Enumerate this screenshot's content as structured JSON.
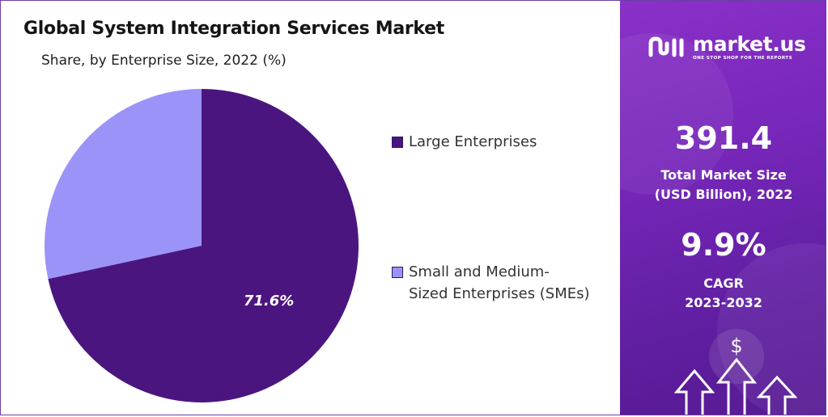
{
  "chart_data": {
    "type": "pie",
    "title": "Global System Integration Services Market",
    "subtitle": "Share, by Enterprise Size, 2022 (%)",
    "slices": [
      {
        "label": "Large Enterprises",
        "value": 71.6,
        "color": "#4b1580",
        "data_label": "71.6%"
      },
      {
        "label": "Small and Medium-Sized Enterprises (SMEs)",
        "value": 28.4,
        "color": "#9b93f7",
        "data_label": ""
      }
    ],
    "legend_placement": "right"
  },
  "legend": {
    "large_label": "Large Enterprises",
    "sme_label_line1": "Small and Medium-",
    "sme_label_line2": "Sized Enterprises (SMEs)"
  },
  "side_panel": {
    "brand_name": "market.us",
    "brand_tagline": "ONE STOP SHOP FOR THE REPORTS",
    "market_size_value": "391.4",
    "market_size_label_line1": "Total Market Size",
    "market_size_label_line2": "(USD Billion), 2022",
    "cagr_value": "9.9%",
    "cagr_label_line1": "CAGR",
    "cagr_label_line2": "2023-2032",
    "currency_symbol": "$",
    "colors": {
      "panel": "#7526b8",
      "text": "#ffffff"
    }
  }
}
